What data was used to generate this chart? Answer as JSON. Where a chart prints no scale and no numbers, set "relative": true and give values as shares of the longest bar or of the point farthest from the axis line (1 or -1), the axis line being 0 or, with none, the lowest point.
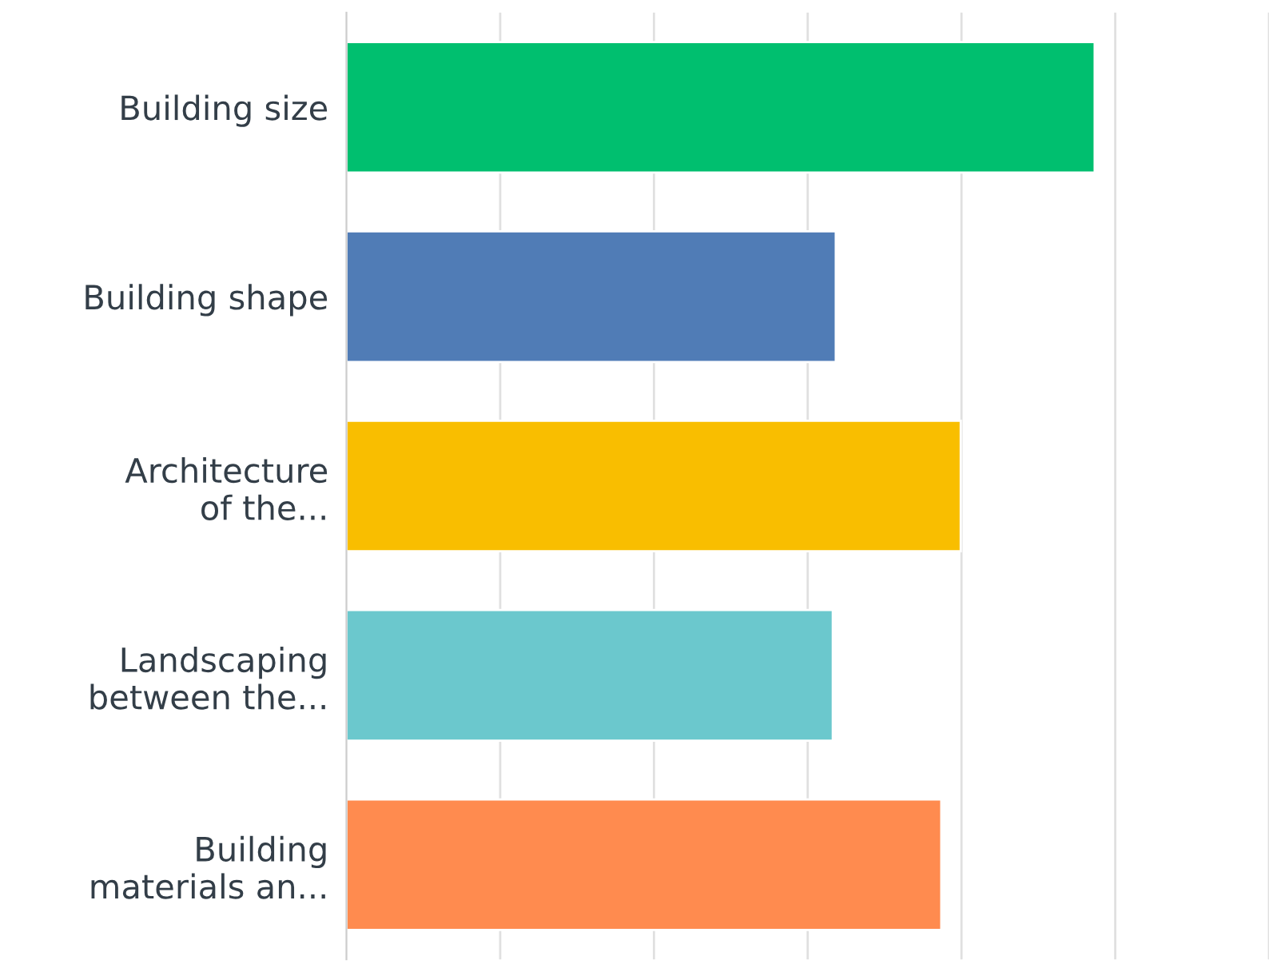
{
  "chart_data": {
    "type": "bar",
    "orientation": "horizontal",
    "relative": true,
    "grid": "x",
    "categories": [
      "Building size",
      "Building shape",
      "Architecture\nof the...",
      "Landscaping\nbetween the...",
      "Building\nmaterials an..."
    ],
    "values": [
      1,
      0.654,
      0.821,
      0.65,
      0.795
    ],
    "colors": [
      "#00bf6f",
      "#507cb6",
      "#f9be00",
      "#6bc8cd",
      "#ff8b4f"
    ]
  }
}
